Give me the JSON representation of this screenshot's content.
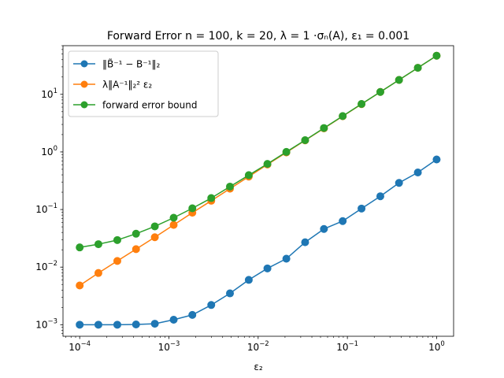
{
  "chart_data": {
    "type": "line",
    "title": "Forward Error n = 100, k = 20, λ = 1 ·σₙ(A), ε₁ = 0.001",
    "xlabel": "ε₂",
    "ylabel": "",
    "xscale": "log",
    "yscale": "log",
    "xlim": [
      6.5e-05,
      1.55
    ],
    "ylim": [
      0.00063,
      70
    ],
    "xticks": [
      {
        "value": 0.0001,
        "base": "10",
        "exp": "−4"
      },
      {
        "value": 0.001,
        "base": "10",
        "exp": "−3"
      },
      {
        "value": 0.01,
        "base": "10",
        "exp": "−2"
      },
      {
        "value": 0.1,
        "base": "10",
        "exp": "−1"
      },
      {
        "value": 1,
        "base": "10",
        "exp": "0"
      }
    ],
    "yticks": [
      {
        "value": 0.001,
        "base": "10",
        "exp": "−3"
      },
      {
        "value": 0.01,
        "base": "10",
        "exp": "−2"
      },
      {
        "value": 0.1,
        "base": "10",
        "exp": "−1"
      },
      {
        "value": 1,
        "base": "10",
        "exp": "0"
      },
      {
        "value": 10,
        "base": "10",
        "exp": "1"
      }
    ],
    "grid": false,
    "legend_position": "top-left",
    "x": [
      0.0001,
      0.000162,
      0.000264,
      0.000428,
      0.000695,
      0.00113,
      0.00183,
      0.00298,
      0.00483,
      0.00785,
      0.0127,
      0.0207,
      0.0336,
      0.0546,
      0.0886,
      0.144,
      0.234,
      0.379,
      0.616,
      1.0
    ],
    "series": [
      {
        "name": "‖B̃⁻¹ − B⁻¹‖₂",
        "color": "#1f77b4",
        "values": [
          0.001,
          0.001,
          0.001,
          0.00101,
          0.00104,
          0.00122,
          0.00148,
          0.0022,
          0.0035,
          0.006,
          0.0095,
          0.014,
          0.027,
          0.046,
          0.063,
          0.104,
          0.17,
          0.29,
          0.44,
          0.74
        ]
      },
      {
        "name": "λ‖A⁻¹‖₂² ε₂",
        "color": "#ff7f0e",
        "values": [
          0.0048,
          0.0079,
          0.0128,
          0.0205,
          0.033,
          0.054,
          0.088,
          0.142,
          0.23,
          0.373,
          0.605,
          0.98,
          1.59,
          2.57,
          4.17,
          6.77,
          11.0,
          17.8,
          28.9,
          46.9
        ]
      },
      {
        "name": "forward error bound",
        "color": "#2ca02c",
        "values": [
          0.022,
          0.025,
          0.0295,
          0.038,
          0.051,
          0.072,
          0.105,
          0.158,
          0.25,
          0.395,
          0.62,
          1.0,
          1.6,
          2.6,
          4.2,
          6.8,
          11.0,
          17.8,
          28.9,
          46.9
        ]
      }
    ]
  }
}
